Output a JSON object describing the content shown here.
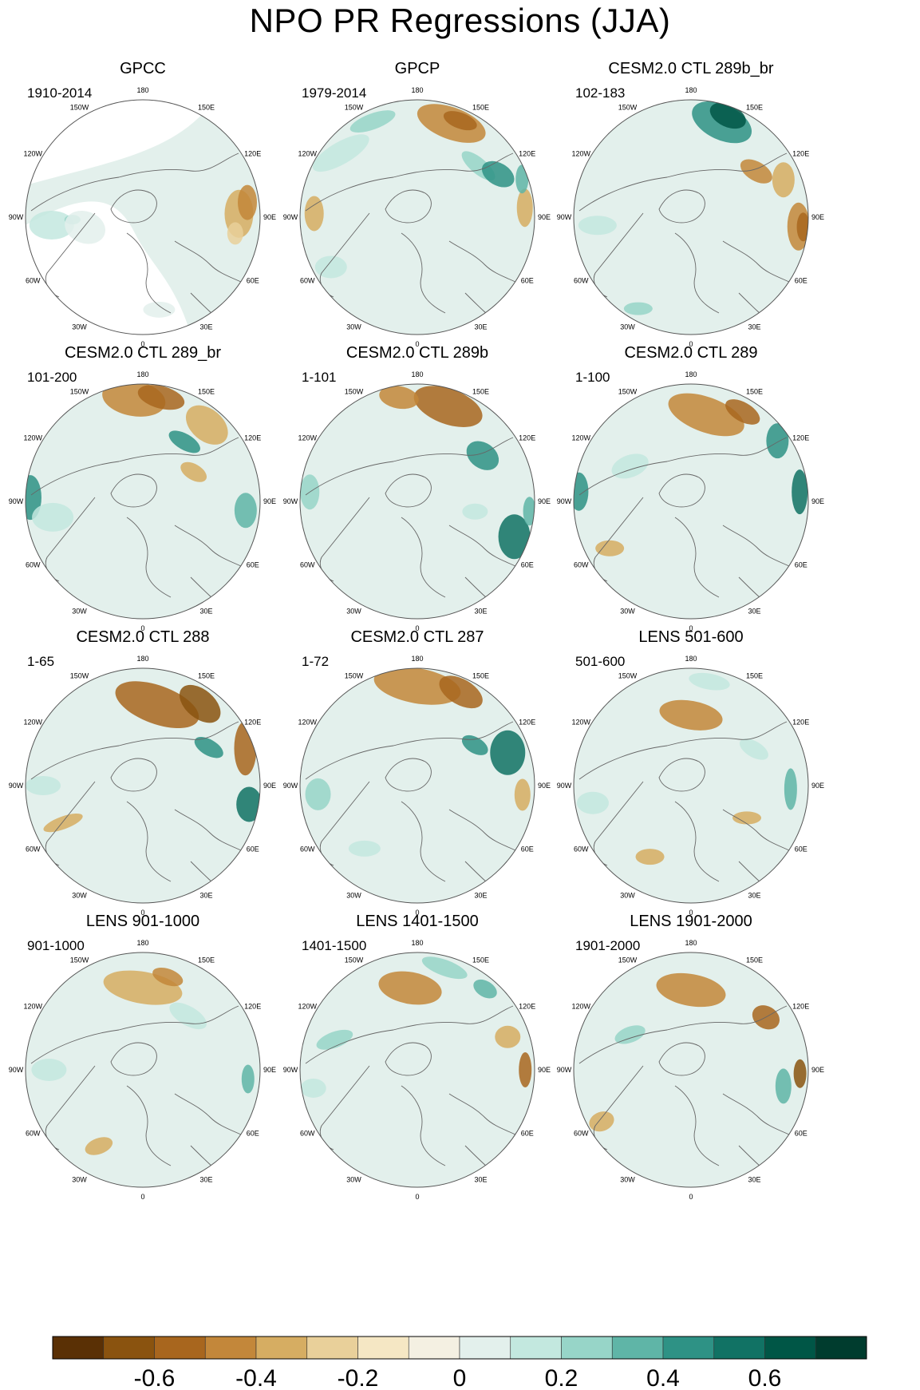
{
  "title": "NPO PR Regressions (JJA)",
  "panels": [
    {
      "title": "GPCC",
      "period": "1910-2014"
    },
    {
      "title": "GPCP",
      "period": "1979-2014"
    },
    {
      "title": "CESM2.0 CTL 289b_br",
      "period": "102-183"
    },
    {
      "title": "CESM2.0 CTL 289_br",
      "period": "101-200"
    },
    {
      "title": "CESM2.0 CTL 289b",
      "period": "1-101"
    },
    {
      "title": "CESM2.0 CTL 289",
      "period": "1-100"
    },
    {
      "title": "CESM2.0 CTL 288",
      "period": "1-65"
    },
    {
      "title": "CESM2.0 CTL 287",
      "period": "1-72"
    },
    {
      "title": "LENS 501-600",
      "period": "501-600"
    },
    {
      "title": "LENS 901-1000",
      "period": "901-1000"
    },
    {
      "title": "LENS 1401-1500",
      "period": "1401-1500"
    },
    {
      "title": "LENS 1901-2000",
      "period": "1901-2000"
    }
  ],
  "longitude_labels": [
    "180",
    "150E",
    "120E",
    "90E",
    "60E",
    "30E",
    "0",
    "30W",
    "60W",
    "90W",
    "120W",
    "150W"
  ],
  "colorbar": {
    "colors": [
      "#5a3005",
      "#8a530f",
      "#a8661e",
      "#c3873a",
      "#d6ad62",
      "#e9d09a",
      "#f5e7c4",
      "#f4f0e2",
      "#e3f0ec",
      "#c3e8df",
      "#97d5c8",
      "#5fb5a7",
      "#2e9285",
      "#117264",
      "#005646",
      "#003c2e"
    ],
    "tick_labels": [
      "-0.6",
      "-0.4",
      "-0.2",
      "0",
      "0.2",
      "0.4",
      "0.6"
    ],
    "tick_values": [
      -0.6,
      -0.4,
      -0.2,
      0,
      0.2,
      0.4,
      0.6
    ],
    "range": [
      -0.8,
      0.8
    ]
  }
}
